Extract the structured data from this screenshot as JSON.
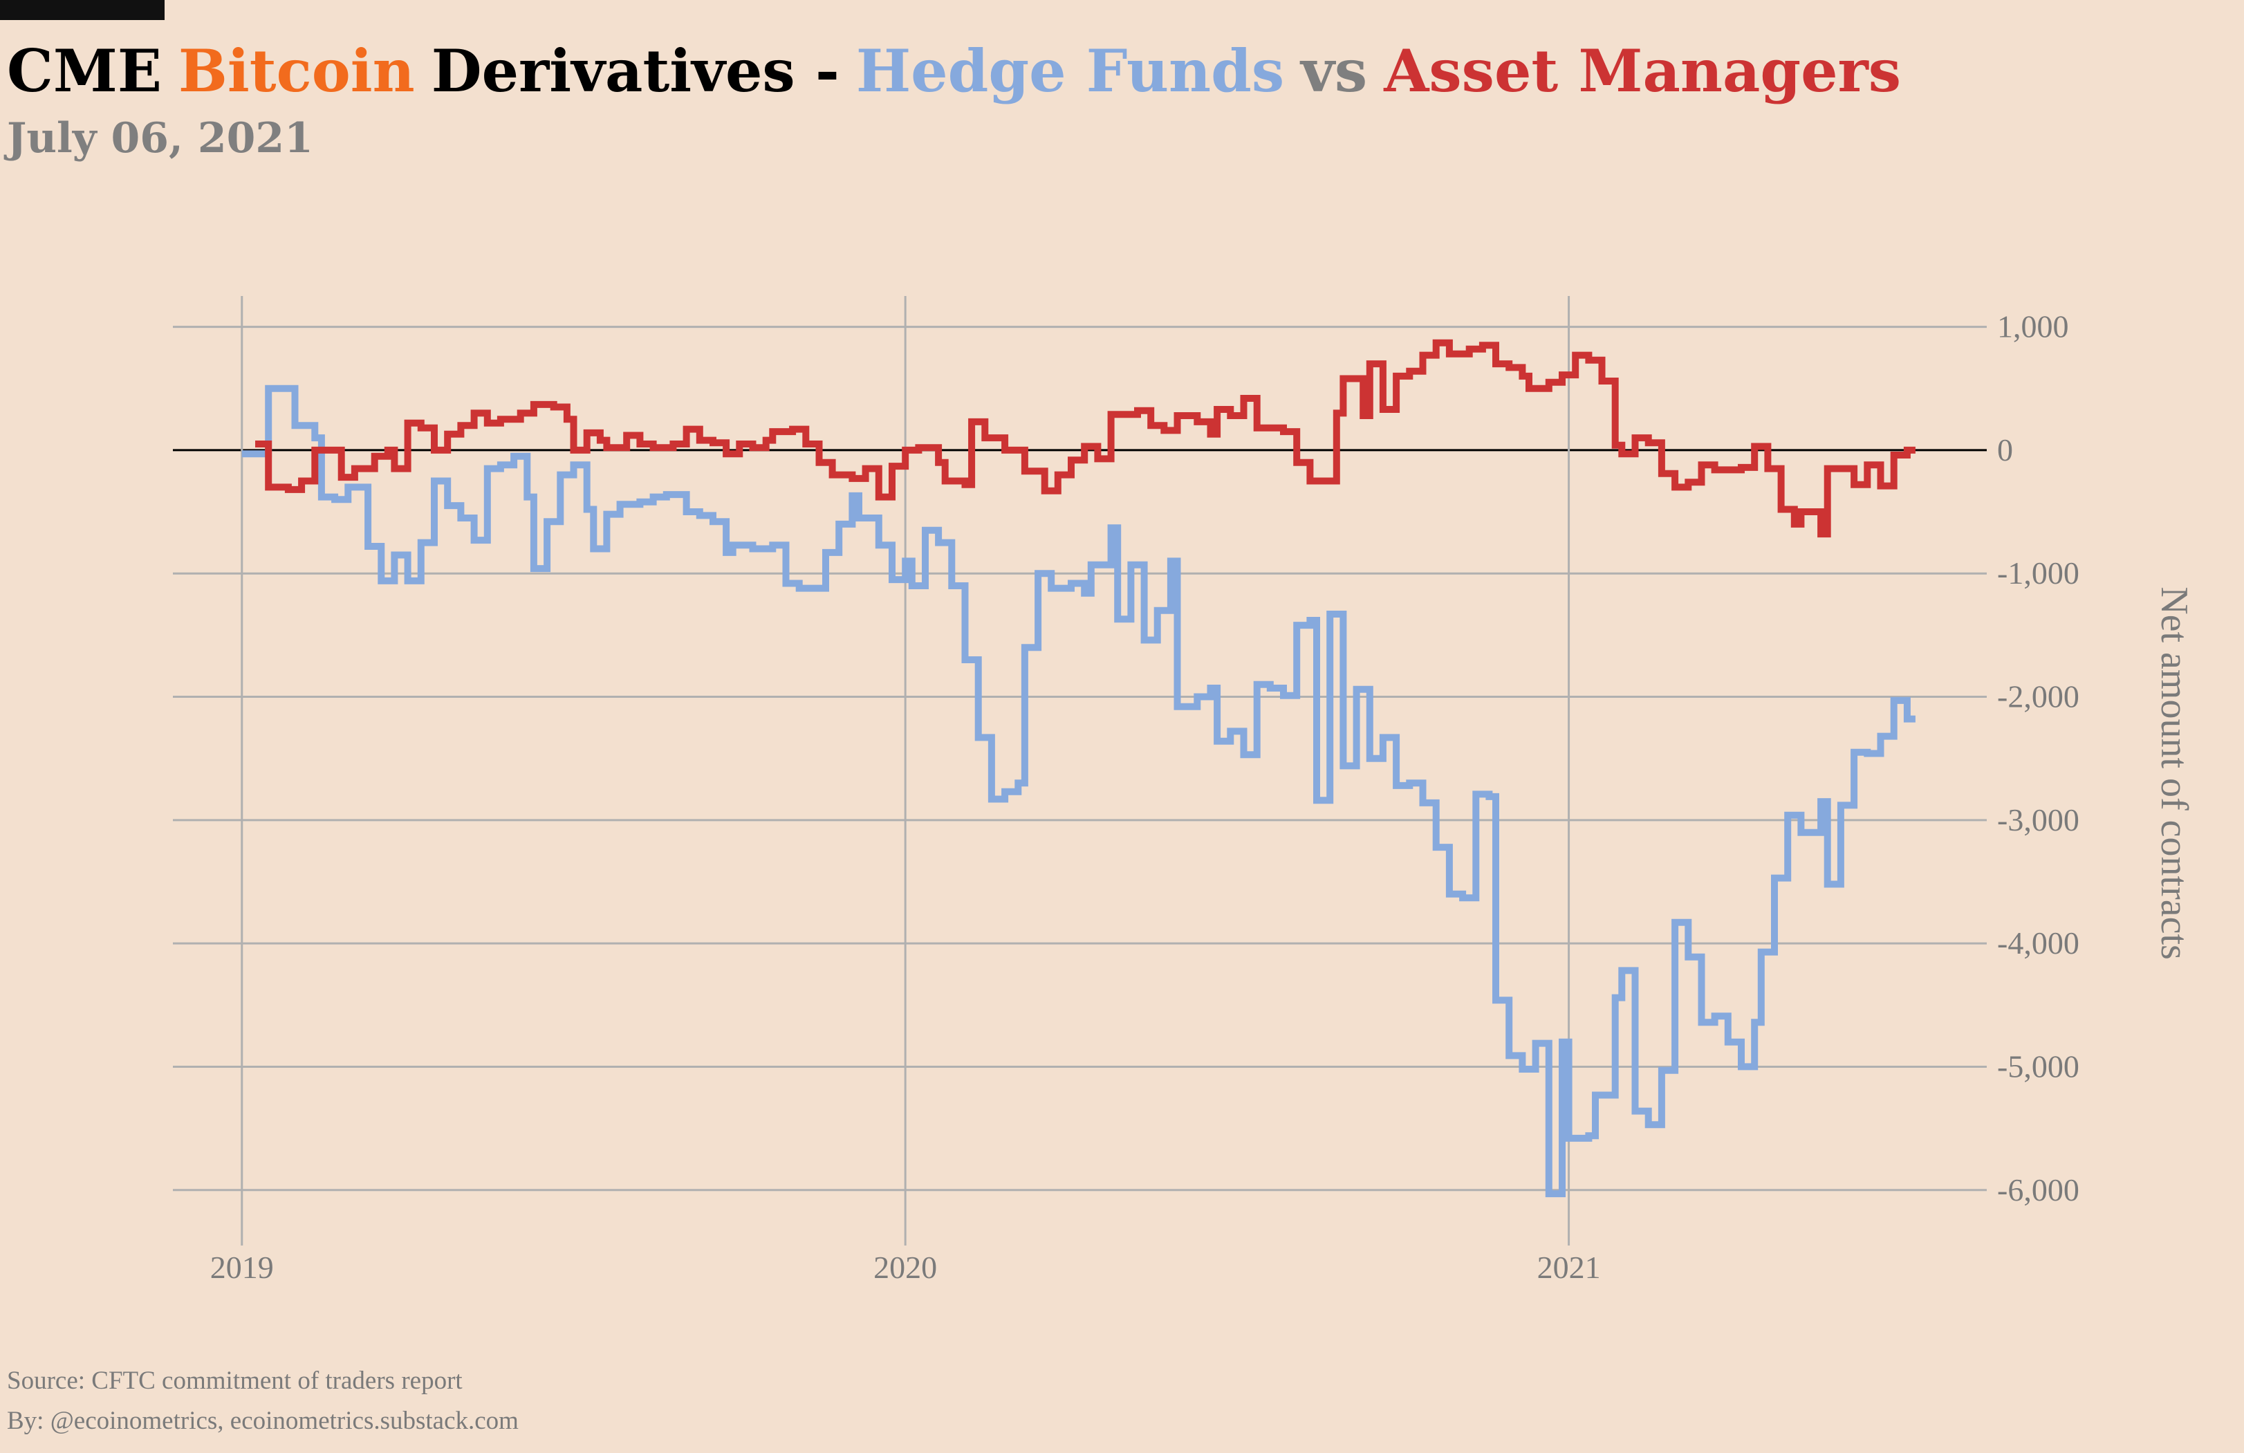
{
  "chart_data": {
    "type": "step",
    "title_parts": [
      {
        "text": "CME",
        "color": "#000000"
      },
      {
        "text": "Bitcoin",
        "color": "#f26b1d"
      },
      {
        "text": "Derivatives -",
        "color": "#000000"
      },
      {
        "text": "Hedge Funds",
        "color": "#86a9dd"
      },
      {
        "text": "vs",
        "color": "#7f7f7f"
      },
      {
        "text": "Asset Managers",
        "color": "#cc3333"
      }
    ],
    "subtitle": "July 06, 2021",
    "y_label": "Net amount of contracts",
    "source": "Source: CFTC commitment of traders report",
    "byline": "By: @ecoinometrics, ecoinometrics.substack.com",
    "xlim": [
      2018.896,
      2021.63
    ],
    "xticks": [
      2019,
      2020,
      2021
    ],
    "ylim": [
      -6450,
      1250
    ],
    "yticks": [
      {
        "value": 1000,
        "label": "1,000"
      },
      0,
      {
        "value": -1000,
        "label": "-1,000"
      },
      {
        "value": -2000,
        "label": "-2,000"
      },
      {
        "value": -3000,
        "label": "-3,000"
      },
      {
        "value": -4000,
        "label": "-4,000"
      },
      {
        "value": -5000,
        "label": "-5,000"
      },
      {
        "value": -6000,
        "label": "-6,000"
      }
    ],
    "grid": true,
    "series": [
      {
        "color": "#86a9dd",
        "x": [
          2019.0,
          2019.04,
          2019.08,
          2019.11,
          2019.12,
          2019.14,
          2019.16,
          2019.19,
          2019.21,
          2019.23,
          2019.25,
          2019.27,
          2019.29,
          2019.31,
          2019.33,
          2019.35,
          2019.37,
          2019.39,
          2019.41,
          2019.43,
          2019.44,
          2019.46,
          2019.48,
          2019.5,
          2019.52,
          2019.53,
          2019.55,
          2019.57,
          2019.6,
          2019.62,
          2019.64,
          2019.67,
          2019.69,
          2019.71,
          2019.73,
          2019.74,
          2019.77,
          2019.8,
          2019.82,
          2019.84,
          2019.88,
          2019.9,
          2019.92,
          2019.93,
          2019.96,
          2019.98,
          2020.0,
          2020.01,
          2020.03,
          2020.05,
          2020.07,
          2020.09,
          2020.11,
          2020.13,
          2020.15,
          2020.17,
          2020.18,
          2020.2,
          2020.22,
          2020.25,
          2020.27,
          2020.28,
          2020.31,
          2020.32,
          2020.34,
          2020.36,
          2020.38,
          2020.4,
          2020.41,
          2020.44,
          2020.46,
          2020.47,
          2020.49,
          2020.51,
          2020.53,
          2020.55,
          2020.57,
          2020.59,
          2020.61,
          2020.62,
          2020.64,
          2020.66,
          2020.68,
          2020.7,
          2020.72,
          2020.74,
          2020.76,
          2020.78,
          2020.8,
          2020.82,
          2020.84,
          2020.86,
          2020.88,
          2020.89,
          2020.91,
          2020.93,
          2020.95,
          2020.97,
          2020.99,
          2021.0,
          2021.03,
          2021.04,
          2021.07,
          2021.08,
          2021.1,
          2021.12,
          2021.14,
          2021.16,
          2021.18,
          2021.2,
          2021.22,
          2021.24,
          2021.26,
          2021.28,
          2021.29,
          2021.31,
          2021.33,
          2021.35,
          2021.38,
          2021.39,
          2021.41,
          2021.43,
          2021.45,
          2021.47,
          2021.49,
          2021.51
        ],
        "values": [
          -30,
          500,
          200,
          100,
          -380,
          -400,
          -300,
          -780,
          -1060,
          -850,
          -1060,
          -750,
          -250,
          -450,
          -550,
          -730,
          -150,
          -120,
          -50,
          -380,
          -960,
          -580,
          -200,
          -120,
          -480,
          -800,
          -520,
          -440,
          -420,
          -380,
          -360,
          -500,
          -530,
          -580,
          -830,
          -770,
          -800,
          -770,
          -1080,
          -1120,
          -830,
          -600,
          -370,
          -550,
          -770,
          -1050,
          -900,
          -1100,
          -650,
          -750,
          -1100,
          -1700,
          -2330,
          -2830,
          -2770,
          -2700,
          -1600,
          -1000,
          -1120,
          -1080,
          -1160,
          -930,
          -630,
          -1370,
          -930,
          -1540,
          -1300,
          -900,
          -2080,
          -2000,
          -1930,
          -2360,
          -2280,
          -2470,
          -1900,
          -1930,
          -1990,
          -1420,
          -1380,
          -2840,
          -1330,
          -2560,
          -1940,
          -2500,
          -2330,
          -2720,
          -2700,
          -2860,
          -3220,
          -3600,
          -3630,
          -2790,
          -2810,
          -4460,
          -4910,
          -5020,
          -4810,
          -6030,
          -4800,
          -5580,
          -5560,
          -5230,
          -4440,
          -4220,
          -5360,
          -5470,
          -5030,
          -3830,
          -4110,
          -4640,
          -4590,
          -4800,
          -5000,
          -4640,
          -4070,
          -3470,
          -2960,
          -3100,
          -2850,
          -3520,
          -2880,
          -2450,
          -2460,
          -2320,
          -2030,
          -2180
        ]
      },
      {
        "color": "#cc3333",
        "x": [
          2019.02,
          2019.04,
          2019.07,
          2019.09,
          2019.11,
          2019.15,
          2019.17,
          2019.2,
          2019.22,
          2019.23,
          2019.25,
          2019.27,
          2019.29,
          2019.31,
          2019.33,
          2019.35,
          2019.37,
          2019.39,
          2019.42,
          2019.44,
          2019.47,
          2019.49,
          2019.5,
          2019.52,
          2019.54,
          2019.55,
          2019.58,
          2019.6,
          2019.62,
          2019.65,
          2019.67,
          2019.69,
          2019.71,
          2019.73,
          2019.75,
          2019.77,
          2019.79,
          2019.8,
          2019.83,
          2019.85,
          2019.87,
          2019.89,
          2019.92,
          2019.94,
          2019.96,
          2019.98,
          2020.0,
          2020.02,
          2020.05,
          2020.06,
          2020.09,
          2020.1,
          2020.12,
          2020.15,
          2020.18,
          2020.21,
          2020.23,
          2020.25,
          2020.27,
          2020.29,
          2020.31,
          2020.35,
          2020.37,
          2020.39,
          2020.41,
          2020.44,
          2020.46,
          2020.47,
          2020.49,
          2020.51,
          2020.53,
          2020.57,
          2020.59,
          2020.61,
          2020.65,
          2020.66,
          2020.69,
          2020.7,
          2020.72,
          2020.74,
          2020.76,
          2020.78,
          2020.8,
          2020.82,
          2020.85,
          2020.87,
          2020.89,
          2020.91,
          2020.93,
          2020.94,
          2020.97,
          2020.99,
          2021.01,
          2021.03,
          2021.05,
          2021.07,
          2021.08,
          2021.1,
          2021.12,
          2021.14,
          2021.16,
          2021.18,
          2021.2,
          2021.22,
          2021.26,
          2021.28,
          2021.3,
          2021.32,
          2021.34,
          2021.35,
          2021.38,
          2021.39,
          2021.43,
          2021.45,
          2021.47,
          2021.49,
          2021.51
        ],
        "values": [
          50,
          -300,
          -320,
          -250,
          0,
          -220,
          -150,
          -50,
          0,
          -150,
          220,
          180,
          0,
          130,
          200,
          300,
          220,
          250,
          300,
          370,
          350,
          250,
          0,
          140,
          80,
          20,
          120,
          50,
          20,
          50,
          170,
          80,
          60,
          -30,
          50,
          20,
          80,
          150,
          170,
          50,
          -100,
          -200,
          -230,
          -150,
          -380,
          -130,
          0,
          20,
          -100,
          -250,
          -280,
          230,
          100,
          0,
          -170,
          -330,
          -200,
          -80,
          30,
          -70,
          290,
          320,
          200,
          160,
          280,
          230,
          130,
          330,
          280,
          420,
          180,
          150,
          -100,
          -250,
          300,
          580,
          280,
          700,
          330,
          600,
          640,
          770,
          870,
          780,
          820,
          850,
          700,
          670,
          600,
          500,
          550,
          610,
          770,
          730,
          560,
          40,
          -30,
          100,
          60,
          -190,
          -300,
          -260,
          -120,
          -160,
          -140,
          30,
          -150,
          -480,
          -600,
          -500,
          -680,
          -150,
          -280,
          -120,
          -290,
          -40,
          0
        ]
      }
    ]
  }
}
